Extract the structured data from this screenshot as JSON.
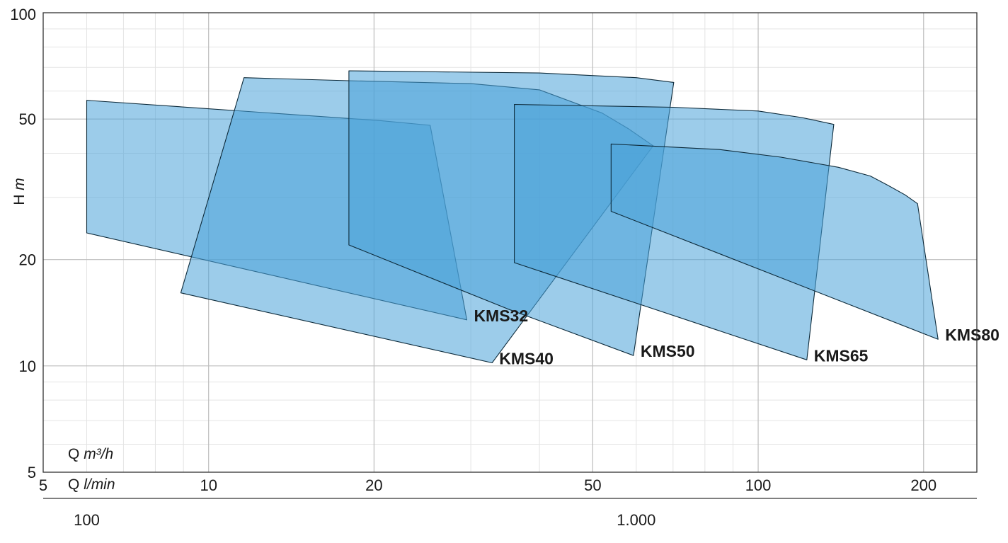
{
  "chart_data": {
    "type": "area",
    "title": "",
    "x_scale": "log",
    "y_scale": "log",
    "xlim": [
      5,
      250
    ],
    "ylim": [
      5,
      100
    ],
    "grid": true,
    "fill_color": "#4aa3d8",
    "fill_opacity": 0.55,
    "stroke_color": "#0d2a3a",
    "ylabel_main": "H",
    "ylabel_unit": "m",
    "xlabel_main": "Q",
    "xlabel_unit": "m³/h",
    "x2label_main": "Q",
    "x2label_unit": "l/min",
    "x_ticks": [
      {
        "value": 5,
        "label": "5"
      },
      {
        "value": 10,
        "label": "10"
      },
      {
        "value": 20,
        "label": "20"
      },
      {
        "value": 50,
        "label": "50"
      },
      {
        "value": 100,
        "label": "100"
      },
      {
        "value": 200,
        "label": "200"
      }
    ],
    "y_ticks": [
      {
        "value": 5,
        "label": "5"
      },
      {
        "value": 10,
        "label": "10"
      },
      {
        "value": 20,
        "label": "20"
      },
      {
        "value": 50,
        "label": "50"
      },
      {
        "value": 100,
        "label": "100"
      }
    ],
    "x2_ticks": [
      {
        "value": 100,
        "label": "100"
      },
      {
        "value": 1000,
        "label": "1.000"
      }
    ],
    "series": [
      {
        "name": "KMS32",
        "points": [
          [
            6.0,
            56.5
          ],
          [
            20.5,
            49.5
          ],
          [
            25.3,
            48.0
          ],
          [
            29.5,
            13.5
          ],
          [
            6.0,
            23.8
          ]
        ]
      },
      {
        "name": "KMS40",
        "points": [
          [
            11.6,
            65.5
          ],
          [
            18.0,
            64.2
          ],
          [
            30.0,
            63.0
          ],
          [
            40.0,
            60.5
          ],
          [
            52.0,
            52.0
          ],
          [
            58.0,
            47.0
          ],
          [
            64.4,
            42.0
          ],
          [
            32.8,
            10.2
          ],
          [
            8.9,
            16.1
          ]
        ]
      },
      {
        "name": "KMS50",
        "points": [
          [
            18.0,
            68.5
          ],
          [
            40.0,
            67.5
          ],
          [
            60.0,
            65.5
          ],
          [
            70.2,
            63.5
          ],
          [
            59.3,
            10.7
          ],
          [
            35.0,
            14.5
          ],
          [
            18.0,
            22.0
          ]
        ]
      },
      {
        "name": "KMS65",
        "points": [
          [
            36.0,
            55.0
          ],
          [
            70.0,
            54.0
          ],
          [
            100.0,
            52.7
          ],
          [
            120.0,
            50.5
          ],
          [
            137.3,
            48.3
          ],
          [
            122.6,
            10.4
          ],
          [
            36.0,
            19.6
          ]
        ]
      },
      {
        "name": "KMS80",
        "points": [
          [
            54.0,
            42.5
          ],
          [
            85.0,
            41.0
          ],
          [
            110.0,
            39.0
          ],
          [
            140.0,
            36.5
          ],
          [
            160.0,
            34.5
          ],
          [
            172.0,
            32.5
          ],
          [
            185.0,
            30.5
          ],
          [
            195.0,
            28.8
          ],
          [
            212.5,
            11.9
          ],
          [
            54.0,
            27.4
          ]
        ]
      }
    ]
  }
}
